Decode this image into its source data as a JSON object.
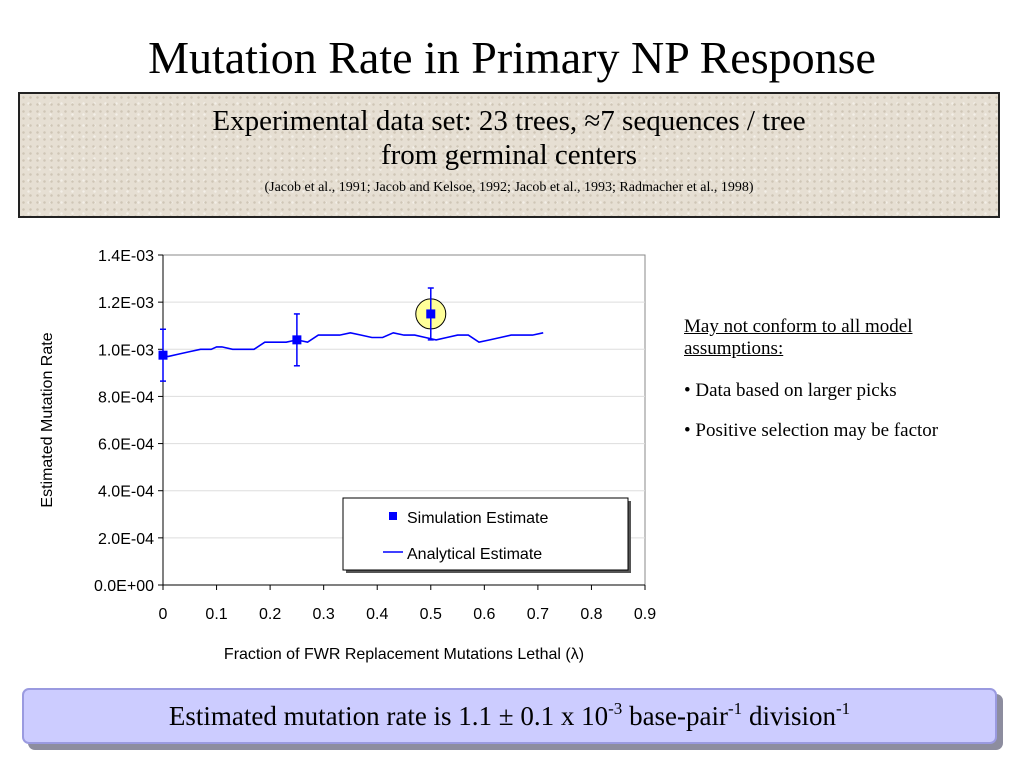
{
  "slide": {
    "title": "Mutation Rate in Primary NP Response",
    "info_line1": "Experimental data set: 23 trees, ≈7 sequences / tree",
    "info_line2": "from germinal centers",
    "citation": "(Jacob et al., 1991; Jacob and Kelsoe, 1992; Jacob et al., 1993; Radmacher et al., 1998)"
  },
  "notes": {
    "heading_line1": "May not conform to all model",
    "heading_line2": "assumptions:",
    "bullet1": "• Data based on larger picks",
    "bullet2": "• Positive selection may be factor"
  },
  "result": {
    "pre": "Estimated mutation rate is 1.1 ± 0.1 x 10",
    "exp1": "-3",
    "mid": " base-pair",
    "exp2": "-1",
    "post": " division",
    "exp3": "-1"
  },
  "chart_data": {
    "type": "line",
    "xlabel": "Fraction of FWR Replacement Mutations Lethal (λ)",
    "ylabel": "Estimated Mutation Rate",
    "xlim": [
      0,
      0.9
    ],
    "ylim": [
      0,
      0.0014
    ],
    "x_ticks": [
      "0",
      "0.1",
      "0.2",
      "0.3",
      "0.4",
      "0.5",
      "0.6",
      "0.7",
      "0.8",
      "0.9"
    ],
    "y_ticks": [
      "0.0E+00",
      "2.0E-04",
      "4.0E-04",
      "6.0E-04",
      "8.0E-04",
      "1.0E-03",
      "1.2E-03",
      "1.4E-03"
    ],
    "grid": "horizontal",
    "legend_position": "bottom-right",
    "series": [
      {
        "name": "Simulation Estimate",
        "kind": "scatter",
        "marker": "square",
        "color": "#0000ff",
        "points": [
          {
            "x": 0.0,
            "y": 0.000975,
            "err_low": 0.000865,
            "err_high": 0.001085
          },
          {
            "x": 0.25,
            "y": 0.00104,
            "err_low": 0.00093,
            "err_high": 0.00115
          },
          {
            "x": 0.5,
            "y": 0.00115,
            "err_low": 0.00104,
            "err_high": 0.00126
          }
        ]
      },
      {
        "name": "Analytical Estimate",
        "kind": "line",
        "color": "#0000ff",
        "x": [
          0,
          0.01,
          0.03,
          0.05,
          0.07,
          0.09,
          0.1,
          0.11,
          0.13,
          0.15,
          0.17,
          0.19,
          0.21,
          0.23,
          0.25,
          0.27,
          0.29,
          0.31,
          0.33,
          0.35,
          0.37,
          0.39,
          0.41,
          0.43,
          0.45,
          0.47,
          0.49,
          0.51,
          0.53,
          0.55,
          0.57,
          0.59,
          0.61,
          0.63,
          0.65,
          0.67,
          0.69,
          0.71
        ],
        "y": [
          0.00097,
          0.00097,
          0.00098,
          0.00099,
          0.001,
          0.001,
          0.00101,
          0.00101,
          0.001,
          0.001,
          0.001,
          0.00103,
          0.00103,
          0.00103,
          0.00104,
          0.00103,
          0.00106,
          0.00106,
          0.00106,
          0.00107,
          0.00106,
          0.00105,
          0.00105,
          0.00107,
          0.00106,
          0.00106,
          0.00105,
          0.00104,
          0.00105,
          0.00106,
          0.00106,
          0.00103,
          0.00104,
          0.00105,
          0.00106,
          0.00106,
          0.00106,
          0.00107
        ]
      }
    ],
    "highlight": {
      "x": 0.5,
      "y": 0.00115,
      "fill": "#ffff99"
    }
  }
}
